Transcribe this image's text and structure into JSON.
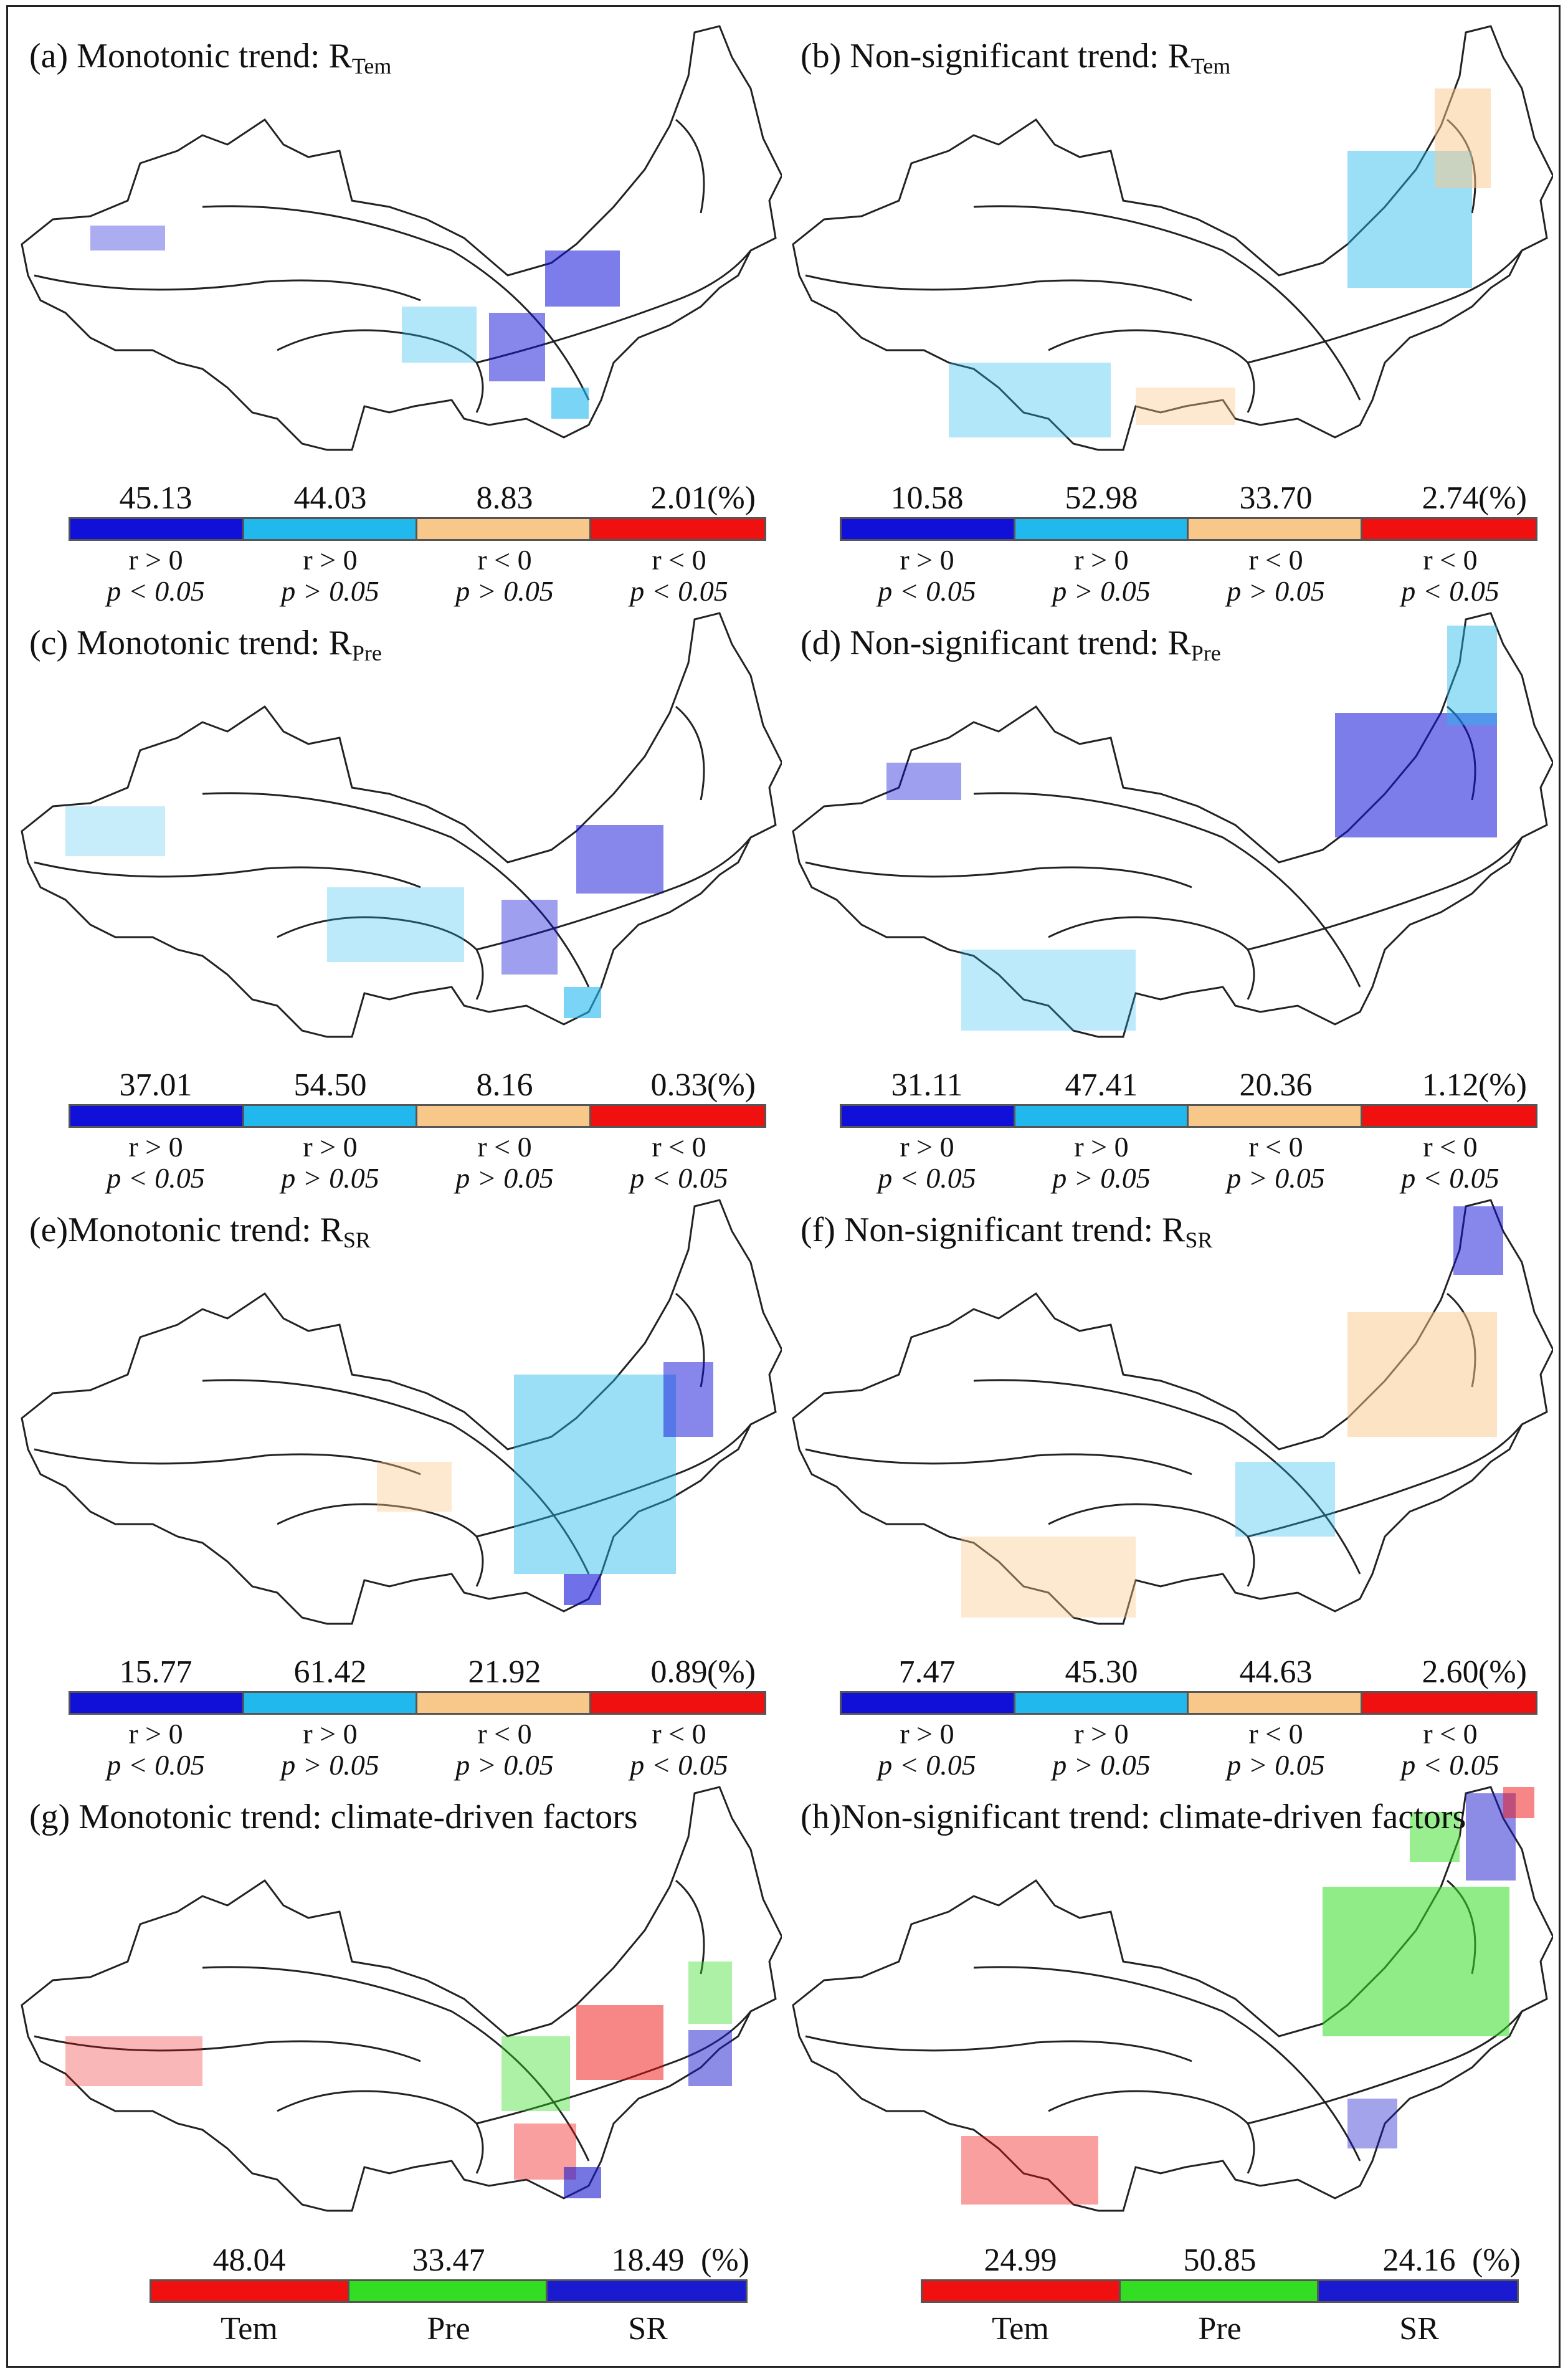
{
  "colors": {
    "dark_blue": "#1010d8",
    "light_blue": "#21b8ee",
    "tan": "#f8c88a",
    "red": "#f01010",
    "green": "#33dd22",
    "blue": "#1a1ad0",
    "outline": "#222222"
  },
  "conditions": [
    {
      "r": "r > 0",
      "p": "p < 0.05"
    },
    {
      "r": "r > 0",
      "p": "p > 0.05"
    },
    {
      "r": "r < 0",
      "p": "p > 0.05"
    },
    {
      "r": "r < 0",
      "p": "p < 0.05"
    }
  ],
  "unit": "(%)",
  "panels": [
    {
      "id": "a",
      "title": "(a) Monotonic trend: R",
      "sub": "Tem",
      "values": [
        "45.13",
        "44.03",
        "8.83",
        "2.01"
      ]
    },
    {
      "id": "b",
      "title": "(b) Non-significant trend: R",
      "sub": "Tem",
      "values": [
        "10.58",
        "52.98",
        "33.70",
        "2.74"
      ]
    },
    {
      "id": "c",
      "title": "(c) Monotonic trend: R",
      "sub": "Pre",
      "values": [
        "37.01",
        "54.50",
        "8.16",
        "0.33"
      ]
    },
    {
      "id": "d",
      "title": "(d) Non-significant trend: R",
      "sub": "Pre",
      "values": [
        "31.11",
        "47.41",
        "20.36",
        "1.12"
      ]
    },
    {
      "id": "e",
      "title": "(e)Monotonic trend: R",
      "sub": "SR",
      "values": [
        "15.77",
        "61.42",
        "21.92",
        "0.89"
      ]
    },
    {
      "id": "f",
      "title": "(f) Non-significant trend: R",
      "sub": "SR",
      "values": [
        "7.47",
        "45.30",
        "44.63",
        "2.60"
      ]
    }
  ],
  "factor_panels": [
    {
      "id": "g",
      "title": "(g) Monotonic trend: climate-driven factors",
      "values": [
        "48.04",
        "33.47",
        "18.49"
      ]
    },
    {
      "id": "h",
      "title": "(h)Non-significant trend: climate-driven factors",
      "values": [
        "24.99",
        "50.85",
        "24.16"
      ]
    }
  ],
  "factor_labels": [
    "Tem",
    "Pre",
    "SR"
  ]
}
